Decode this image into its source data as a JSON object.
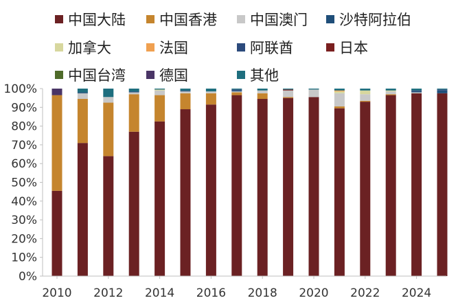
{
  "chart_data": {
    "type": "stacked_bar_100",
    "title": "",
    "xlabel": "",
    "ylabel": "",
    "ylim": [
      0,
      100
    ],
    "y_ticks": [
      "0%",
      "10%",
      "20%",
      "30%",
      "40%",
      "50%",
      "60%",
      "70%",
      "80%",
      "90%",
      "100%"
    ],
    "categories": [
      "2010",
      "2011",
      "2012",
      "2013",
      "2014",
      "2015",
      "2016",
      "2017",
      "2018",
      "2019",
      "2020",
      "2021",
      "2022",
      "2023",
      "2024",
      "2025"
    ],
    "x_tick_labels": [
      "2010",
      "2012",
      "2014",
      "2016",
      "2018",
      "2020",
      "2022",
      "2024"
    ],
    "legend_position": "top",
    "series": [
      {
        "name": "中国大陆",
        "color": "#6b2123",
        "values": [
          45.5,
          71,
          64,
          77,
          82.5,
          89,
          91.5,
          96.5,
          94.5,
          95,
          95.5,
          89.5,
          93,
          96.5,
          97.5,
          97.5
        ]
      },
      {
        "name": "中国香港",
        "color": "#c5852e",
        "values": [
          51,
          23.5,
          28.5,
          20,
          14,
          8.5,
          6,
          1.5,
          3,
          0.5,
          0,
          1,
          0.5,
          0.5,
          0,
          0
        ]
      },
      {
        "name": "中国澳门",
        "color": "#c8c8c8",
        "values": [
          0,
          3,
          3,
          1,
          2.5,
          1,
          1,
          0.5,
          1.5,
          3.5,
          4,
          7,
          3.5,
          1.5,
          0.5,
          0
        ]
      },
      {
        "name": "沙特阿拉伯",
        "color": "#1f4e79",
        "values": [
          0,
          0.5,
          0,
          0.5,
          0,
          0.5,
          0,
          0.5,
          0,
          0,
          0,
          0,
          0,
          0,
          0.5,
          1.5
        ]
      },
      {
        "name": "加拿大",
        "color": "#d7d79e",
        "values": [
          0,
          0,
          0,
          0,
          0.5,
          0,
          0,
          0,
          0,
          0,
          0,
          1,
          2,
          0.5,
          0,
          0
        ]
      },
      {
        "name": "法国",
        "color": "#f0a050",
        "values": [
          0,
          0,
          0,
          0,
          0,
          0,
          0,
          0,
          0,
          0,
          0,
          0.5,
          0,
          0,
          0,
          0
        ]
      },
      {
        "name": "阿联酋",
        "color": "#2c4a7c",
        "values": [
          0,
          0,
          0,
          0,
          0,
          0,
          0,
          0.5,
          0,
          0,
          0,
          0,
          0,
          0,
          0.5,
          0.5
        ]
      },
      {
        "name": "日本",
        "color": "#7a1f1f",
        "values": [
          0,
          0,
          0,
          0,
          0,
          0,
          0,
          0,
          0,
          0.5,
          0,
          0,
          0,
          0,
          0,
          0
        ]
      },
      {
        "name": "中国台湾",
        "color": "#4f6b2a",
        "values": [
          0,
          0,
          0,
          0,
          0,
          0,
          0,
          0,
          0,
          0,
          0,
          0,
          0,
          0,
          0,
          0
        ]
      },
      {
        "name": "德国",
        "color": "#4a3566",
        "values": [
          3.5,
          0,
          0,
          0,
          0,
          0,
          0,
          0,
          0,
          0,
          0,
          0,
          0,
          0,
          0,
          0
        ]
      },
      {
        "name": "其他",
        "color": "#1e6e7e",
        "values": [
          0,
          2,
          4.5,
          1.5,
          0.5,
          1,
          1.5,
          0.5,
          1,
          0.5,
          0.5,
          1,
          1,
          1,
          1,
          0.5
        ]
      }
    ]
  }
}
